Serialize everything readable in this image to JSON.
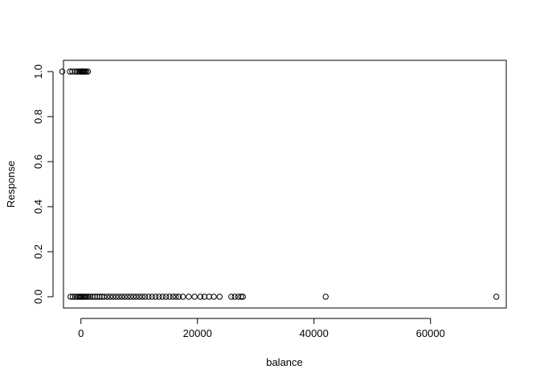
{
  "chart_data": {
    "type": "scatter",
    "title": "",
    "xlabel": "balance",
    "ylabel": "Response",
    "xlim": [
      -3000,
      73000
    ],
    "ylim": [
      -0.05,
      1.05
    ],
    "x_ticks": [
      0,
      20000,
      40000,
      60000
    ],
    "x_tick_labels": [
      "0",
      "20000",
      "40000",
      "60000"
    ],
    "y_ticks": [
      0.0,
      0.2,
      0.4,
      0.6,
      0.8,
      1.0
    ],
    "y_tick_labels": [
      "0.0",
      "0.2",
      "0.4",
      "0.6",
      "0.8",
      "1.0"
    ],
    "grid": false,
    "marker": "open-circle",
    "series": [
      {
        "x": [
          -3200,
          -1900,
          -1500,
          -1000,
          -700,
          -400,
          -200,
          0,
          100,
          250,
          400,
          550,
          700,
          900,
          1200,
          -1800,
          -1400,
          -1000,
          -700,
          -400,
          -200,
          0,
          200,
          400,
          600,
          800,
          1000,
          1300,
          1600,
          2000,
          2400,
          2800,
          3200,
          3600,
          4000,
          4500,
          5000,
          5500,
          6000,
          6500,
          7000,
          7500,
          8000,
          8500,
          9000,
          9500,
          10000,
          10500,
          11000,
          11600,
          12200,
          12800,
          13400,
          14000,
          14600,
          15200,
          15800,
          16300,
          16800,
          17500,
          18500,
          19500,
          20500,
          21200,
          22000,
          22800,
          23800,
          25800,
          26400,
          27000,
          27500,
          27800,
          42000,
          71300
        ],
        "y": [
          1,
          1,
          1,
          1,
          1,
          1,
          1,
          1,
          1,
          1,
          1,
          1,
          1,
          1,
          1,
          0,
          0,
          0,
          0,
          0,
          0,
          0,
          0,
          0,
          0,
          0,
          0,
          0,
          0,
          0,
          0,
          0,
          0,
          0,
          0,
          0,
          0,
          0,
          0,
          0,
          0,
          0,
          0,
          0,
          0,
          0,
          0,
          0,
          0,
          0,
          0,
          0,
          0,
          0,
          0,
          0,
          0,
          0,
          0,
          0,
          0,
          0,
          0,
          0,
          0,
          0,
          0,
          0,
          0,
          0,
          0,
          0,
          0,
          0
        ]
      }
    ]
  }
}
